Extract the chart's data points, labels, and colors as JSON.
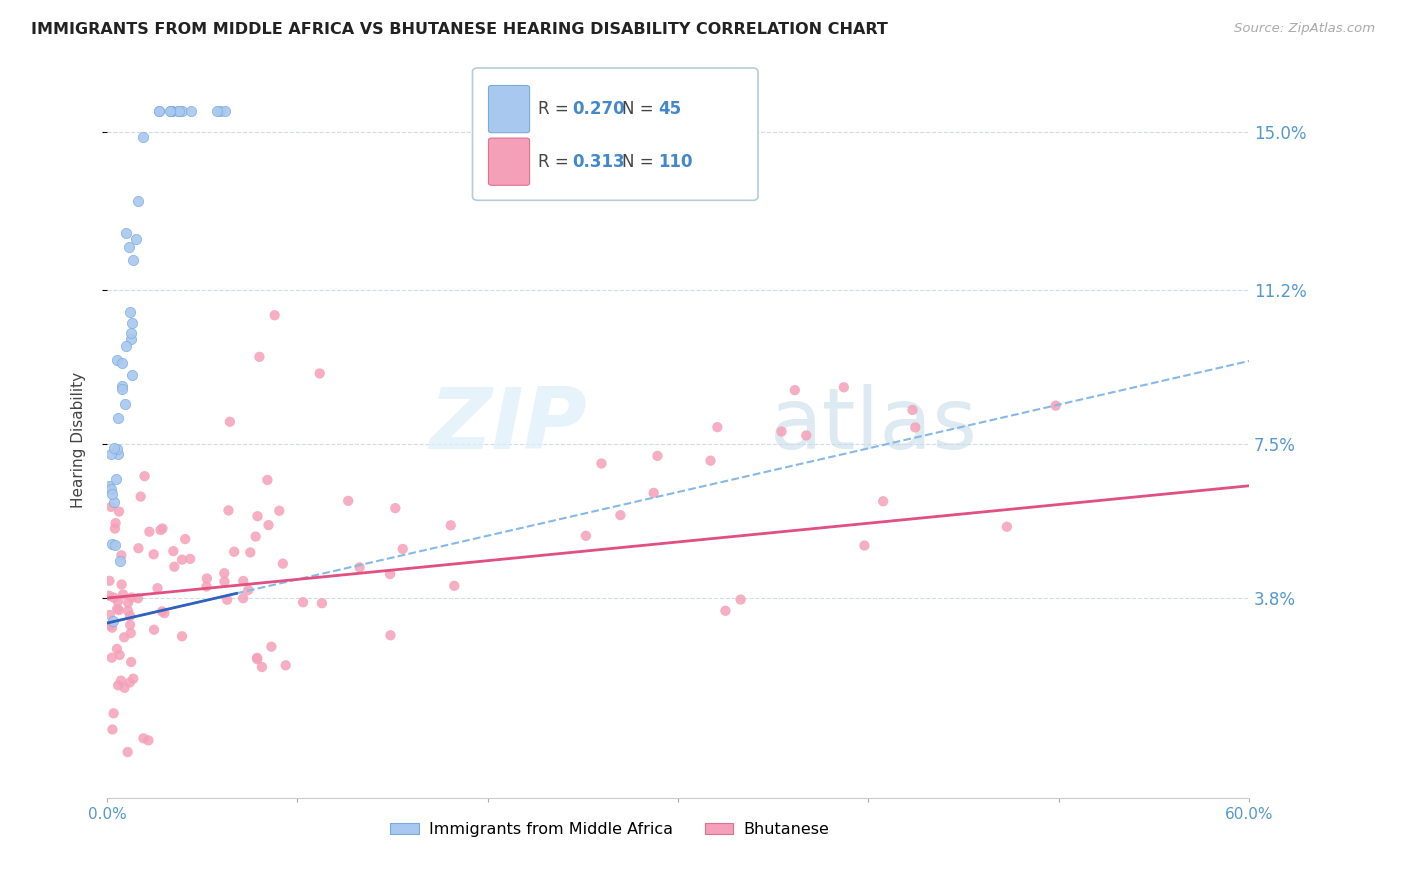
{
  "title": "IMMIGRANTS FROM MIDDLE AFRICA VS BHUTANESE HEARING DISABILITY CORRELATION CHART",
  "source": "Source: ZipAtlas.com",
  "ylabel": "Hearing Disability",
  "xlim": [
    0.0,
    0.6
  ],
  "ylim": [
    -0.01,
    0.162
  ],
  "yticks": [
    0.038,
    0.075,
    0.112,
    0.15
  ],
  "yticklabels": [
    "3.8%",
    "7.5%",
    "11.2%",
    "15.0%"
  ],
  "R_blue": 0.27,
  "N_blue": 45,
  "R_pink": 0.313,
  "N_pink": 110,
  "blue_color": "#a8c8f0",
  "blue_edge": "#7aaad8",
  "pink_color": "#f4a0b8",
  "pink_edge": "#e07090",
  "trend_blue_solid_color": "#3060c0",
  "trend_blue_dash_color": "#88b8e8",
  "trend_pink_color": "#e05080",
  "watermark_zip": "ZIP",
  "watermark_atlas": "atlas",
  "grid_color": "#d0dde8",
  "bottom_legend_labels": [
    "Immigrants from Middle Africa",
    "Bhutanese"
  ]
}
